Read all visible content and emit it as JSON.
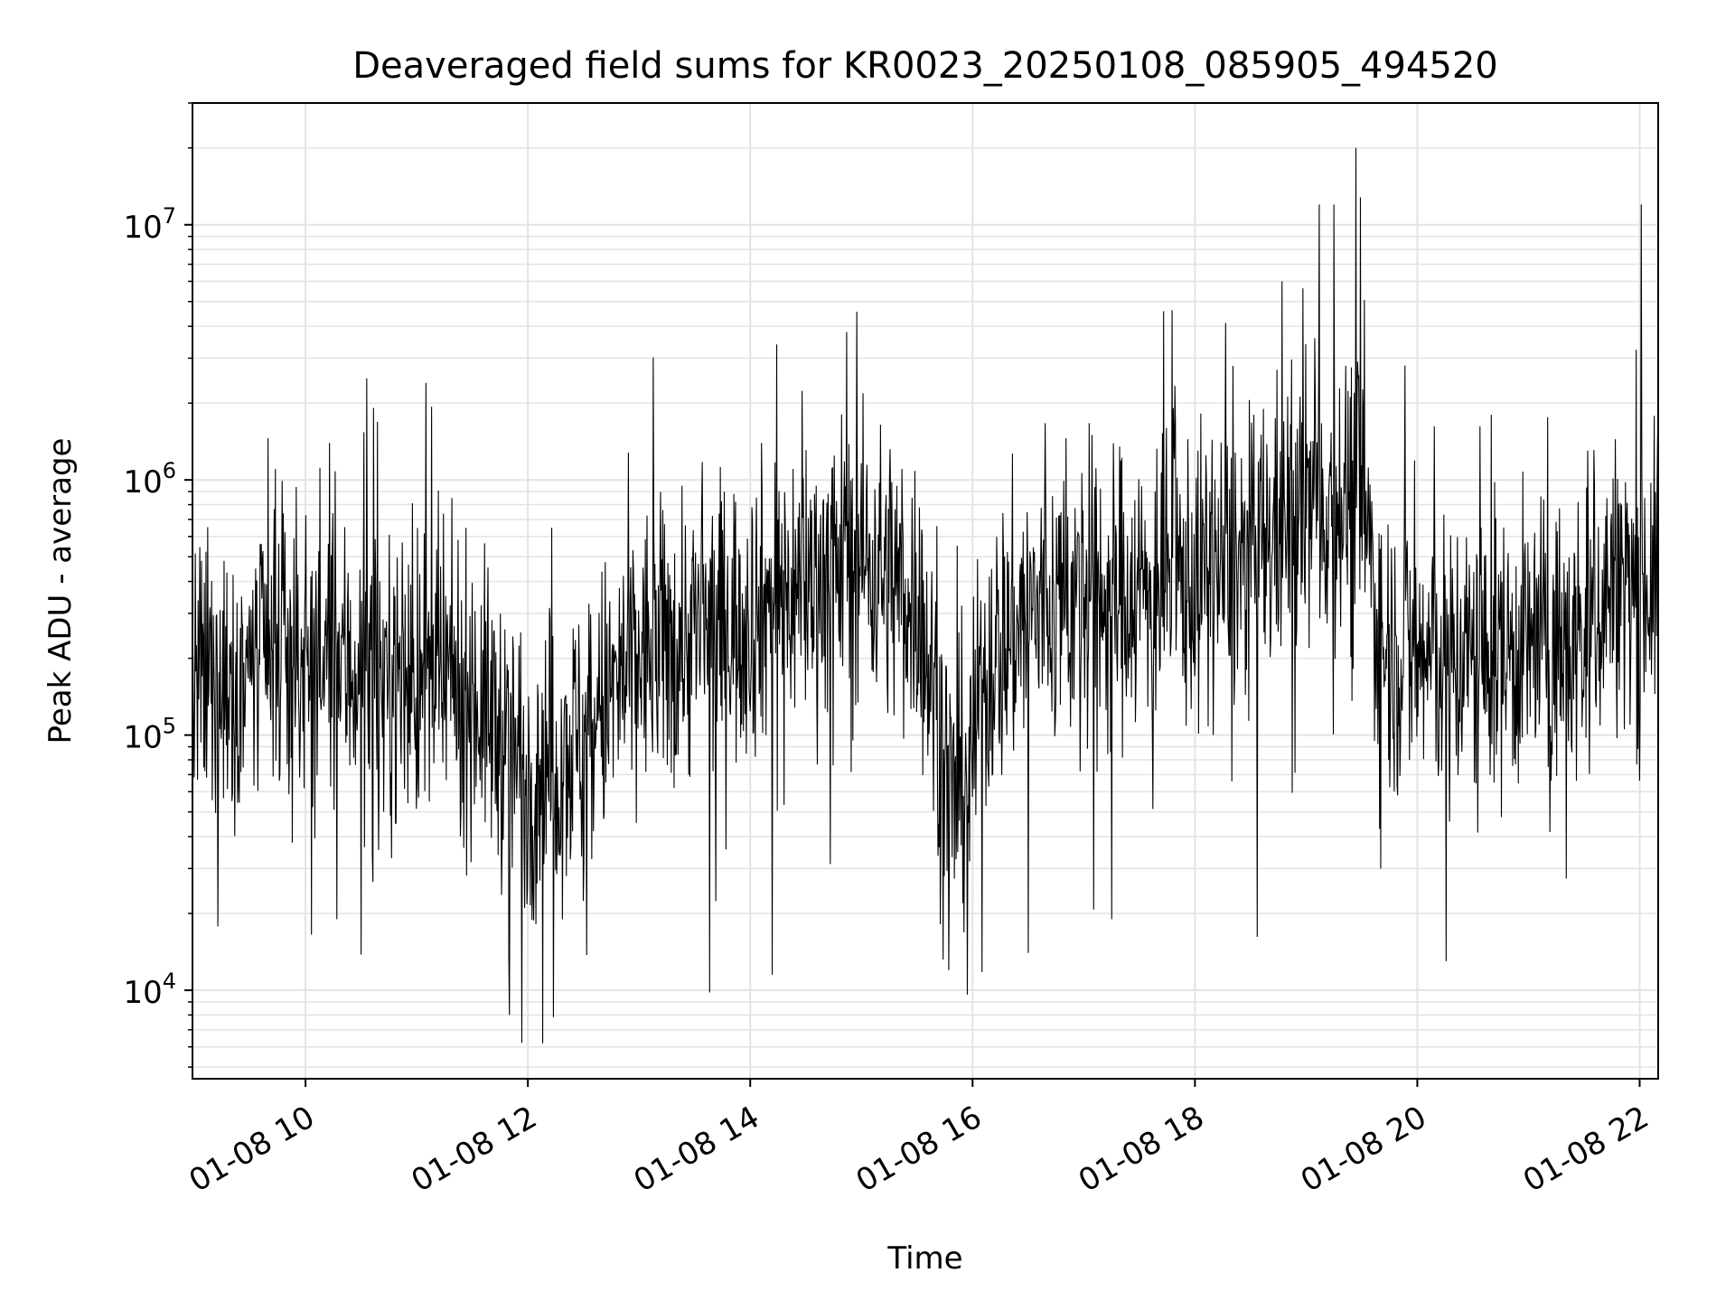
{
  "chart_data": {
    "type": "line",
    "title": "Deaveraged field sums for KR0023_20250108_085905_494520",
    "xlabel": "Time",
    "ylabel": "Peak ADU - average",
    "yscale": "log",
    "xlim": [
      "2025-01-08T08:59",
      "2025-01-08T22:10"
    ],
    "ylim": [
      4500,
      30000000
    ],
    "grid": true,
    "colors": {
      "line": "#000000",
      "grid": "#e3e3e3",
      "axes": "#000000",
      "background": "#ffffff"
    },
    "x_tick_labels": [
      {
        "time": "2025-01-08T10:00",
        "label": "01-08 10"
      },
      {
        "time": "2025-01-08T12:00",
        "label": "01-08 12"
      },
      {
        "time": "2025-01-08T14:00",
        "label": "01-08 14"
      },
      {
        "time": "2025-01-08T16:00",
        "label": "01-08 16"
      },
      {
        "time": "2025-01-08T18:00",
        "label": "01-08 18"
      },
      {
        "time": "2025-01-08T20:00",
        "label": "01-08 20"
      },
      {
        "time": "2025-01-08T22:00",
        "label": "01-08 22"
      }
    ],
    "y_tick_labels": [
      {
        "value": 10000,
        "base": "10",
        "exp": "4"
      },
      {
        "value": 100000,
        "base": "10",
        "exp": "5"
      },
      {
        "value": 1000000,
        "base": "10",
        "exp": "6"
      },
      {
        "value": 10000000,
        "base": "10",
        "exp": "7"
      }
    ],
    "series": [
      {
        "approximate_trend": [
          {
            "time": "2025-01-08T09:00",
            "value": 150000
          },
          {
            "time": "2025-01-08T09:30",
            "value": 180000
          },
          {
            "time": "2025-01-08T10:00",
            "value": 200000
          },
          {
            "time": "2025-01-08T10:30",
            "value": 180000
          },
          {
            "time": "2025-01-08T11:00",
            "value": 160000
          },
          {
            "time": "2025-01-08T11:30",
            "value": 150000
          },
          {
            "time": "2025-01-08T12:00",
            "value": 70000
          },
          {
            "time": "2025-01-08T12:30",
            "value": 100000
          },
          {
            "time": "2025-01-08T13:00",
            "value": 200000
          },
          {
            "time": "2025-01-08T13:30",
            "value": 250000
          },
          {
            "time": "2025-01-08T14:00",
            "value": 300000
          },
          {
            "time": "2025-01-08T14:30",
            "value": 400000
          },
          {
            "time": "2025-01-08T15:00",
            "value": 500000
          },
          {
            "time": "2025-01-08T15:30",
            "value": 350000
          },
          {
            "time": "2025-01-08T15:50",
            "value": 50000
          },
          {
            "time": "2025-01-08T16:10",
            "value": 200000
          },
          {
            "time": "2025-01-08T16:30",
            "value": 300000
          },
          {
            "time": "2025-01-08T17:00",
            "value": 350000
          },
          {
            "time": "2025-01-08T17:30",
            "value": 380000
          },
          {
            "time": "2025-01-08T18:00",
            "value": 400000
          },
          {
            "time": "2025-01-08T18:30",
            "value": 500000
          },
          {
            "time": "2025-01-08T19:00",
            "value": 800000
          },
          {
            "time": "2025-01-08T19:30",
            "value": 900000
          },
          {
            "time": "2025-01-08T19:40",
            "value": 230000
          },
          {
            "time": "2025-01-08T20:00",
            "value": 200000
          },
          {
            "time": "2025-01-08T20:30",
            "value": 200000
          },
          {
            "time": "2025-01-08T21:00",
            "value": 220000
          },
          {
            "time": "2025-01-08T21:30",
            "value": 230000
          },
          {
            "time": "2025-01-08T21:45",
            "value": 400000
          },
          {
            "time": "2025-01-08T22:10",
            "value": 400000
          }
        ],
        "spikes_high": [
          {
            "time": "2025-01-08T10:33",
            "value": 2500000
          },
          {
            "time": "2025-01-08T11:05",
            "value": 2400000
          },
          {
            "time": "2025-01-08T14:52",
            "value": 3800000
          },
          {
            "time": "2025-01-08T18:47",
            "value": 6000000
          },
          {
            "time": "2025-01-08T19:07",
            "value": 12000000
          },
          {
            "time": "2025-01-08T19:15",
            "value": 12000000
          },
          {
            "time": "2025-01-08T19:27",
            "value": 20000000
          },
          {
            "time": "2025-01-08T20:40",
            "value": 1800000
          },
          {
            "time": "2025-01-08T22:01",
            "value": 12000000
          }
        ],
        "spikes_low": [
          {
            "time": "2025-01-08T11:50",
            "value": 8000
          },
          {
            "time": "2025-01-08T12:08",
            "value": 6200
          },
          {
            "time": "2025-01-08T13:38",
            "value": 9800
          },
          {
            "time": "2025-01-08T14:12",
            "value": 11500
          },
          {
            "time": "2025-01-08T15:47",
            "value": 12000
          },
          {
            "time": "2025-01-08T16:30",
            "value": 14000
          },
          {
            "time": "2025-01-08T17:15",
            "value": 19000
          }
        ]
      }
    ]
  }
}
